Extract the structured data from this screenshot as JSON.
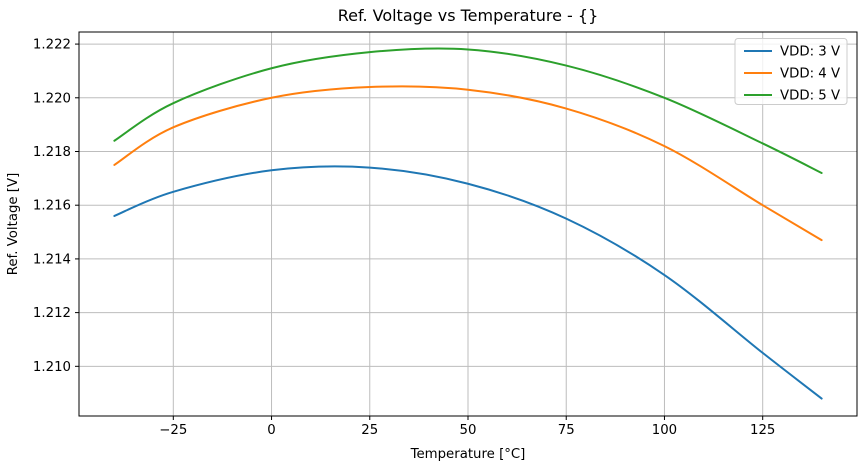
{
  "title": "Ref. Voltage vs Temperature - {}",
  "chart_data": {
    "type": "line",
    "title": "Ref. Voltage vs Temperature - {}",
    "xlabel": "Temperature [°C]",
    "ylabel": "Ref. Voltage [V]",
    "xlim": [
      -49,
      149
    ],
    "ylim": [
      1.20815,
      1.22245
    ],
    "grid": true,
    "legend_position": "upper right",
    "x_ticks": {
      "values": [
        -25,
        0,
        25,
        50,
        75,
        100,
        125
      ],
      "labels": [
        "−25",
        "0",
        "25",
        "50",
        "75",
        "100",
        "125"
      ]
    },
    "y_ticks": {
      "values": [
        1.21,
        1.212,
        1.214,
        1.216,
        1.218,
        1.22,
        1.222
      ],
      "labels": [
        "1.210",
        "1.212",
        "1.214",
        "1.216",
        "1.218",
        "1.220",
        "1.222"
      ]
    },
    "x": [
      -40,
      -25,
      0,
      25,
      50,
      75,
      100,
      125,
      140
    ],
    "series": [
      {
        "name": "VDD: 3 V",
        "color": "#1f77b4",
        "values": [
          1.2156,
          1.2165,
          1.2173,
          1.2174,
          1.2168,
          1.2155,
          1.2134,
          1.2105,
          1.2088
        ]
      },
      {
        "name": "VDD: 4 V",
        "color": "#ff7f0e",
        "values": [
          1.2175,
          1.2189,
          1.22,
          1.2204,
          1.2203,
          1.2196,
          1.2182,
          1.216,
          1.2147
        ]
      },
      {
        "name": "VDD: 5 V",
        "color": "#2ca02c",
        "values": [
          1.2184,
          1.2198,
          1.2211,
          1.2217,
          1.2218,
          1.2212,
          1.22,
          1.2183,
          1.2172
        ]
      }
    ],
    "colors": {
      "grid": "#bdbdbd",
      "spine": "#000000",
      "background": "#ffffff",
      "legend_border": "#cccccc"
    }
  }
}
